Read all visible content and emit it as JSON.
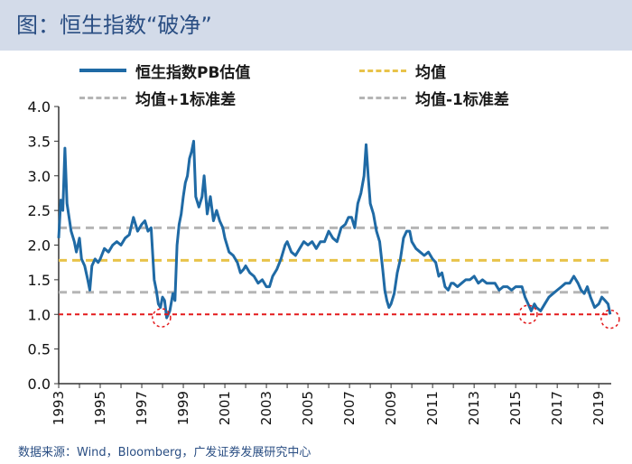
{
  "header": {
    "title": "图：恒生指数“破净”"
  },
  "source": "数据来源：Wind，Bloomberg，广发证券发展研究中心",
  "colors": {
    "header_bg": "#d3dbe9",
    "title": "#2a4e83",
    "series": "#1f6aa5",
    "mean": "#e8c34a",
    "std_band": "#b5b5b5",
    "one_line": "#e31a1c",
    "circle": "#e31a1c"
  },
  "chart_data": {
    "type": "line",
    "title": "图：恒生指数“破净”",
    "xlabel": "",
    "ylabel": "",
    "xlim": [
      1993,
      2019.6
    ],
    "ylim": [
      0.0,
      4.0
    ],
    "y_ticks": [
      "4.0",
      "3.5",
      "3.0",
      "2.5",
      "2.0",
      "1.5",
      "1.0",
      "0.5",
      "0.0"
    ],
    "x_ticks": [
      "1993",
      "1995",
      "1997",
      "1999",
      "2001",
      "2003",
      "2005",
      "2007",
      "2009",
      "2011",
      "2013",
      "2015",
      "2017",
      "2019"
    ],
    "grid": false,
    "legend_position": "top",
    "legend": [
      {
        "label": "恒生指数PB估值",
        "style": "solid"
      },
      {
        "label": "均值",
        "style": "dashed"
      },
      {
        "label": "均值+1标准差",
        "style": "dashed"
      },
      {
        "label": "均值-1标准差",
        "style": "dashed"
      }
    ],
    "series": [
      {
        "name": "恒生指数PB估值",
        "x": [
          1993.0,
          1993.1,
          1993.2,
          1993.3,
          1993.4,
          1993.5,
          1993.6,
          1993.75,
          1993.85,
          1994.0,
          1994.1,
          1994.25,
          1994.4,
          1994.5,
          1994.6,
          1994.75,
          1994.9,
          1995.0,
          1995.2,
          1995.4,
          1995.6,
          1995.8,
          1996.0,
          1996.2,
          1996.4,
          1996.6,
          1996.8,
          1997.0,
          1997.15,
          1997.3,
          1997.45,
          1997.6,
          1997.7,
          1997.8,
          1997.9,
          1998.0,
          1998.1,
          1998.2,
          1998.35,
          1998.5,
          1998.6,
          1998.7,
          1998.8,
          1998.9,
          1999.0,
          1999.1,
          1999.2,
          1999.3,
          1999.4,
          1999.5,
          1999.6,
          1999.75,
          1999.9,
          2000.0,
          2000.15,
          2000.3,
          2000.45,
          2000.6,
          2000.75,
          2000.9,
          2001.0,
          2001.2,
          2001.4,
          2001.6,
          2001.75,
          2001.9,
          2002.0,
          2002.2,
          2002.4,
          2002.6,
          2002.8,
          2003.0,
          2003.15,
          2003.3,
          2003.5,
          2003.7,
          2003.9,
          2004.0,
          2004.2,
          2004.4,
          2004.6,
          2004.8,
          2005.0,
          2005.2,
          2005.4,
          2005.6,
          2005.8,
          2006.0,
          2006.2,
          2006.4,
          2006.6,
          2006.8,
          2006.95,
          2007.1,
          2007.25,
          2007.4,
          2007.55,
          2007.7,
          2007.8,
          2007.9,
          2008.0,
          2008.15,
          2008.3,
          2008.45,
          2008.6,
          2008.7,
          2008.8,
          2008.9,
          2009.0,
          2009.15,
          2009.3,
          2009.45,
          2009.6,
          2009.75,
          2009.9,
          2010.0,
          2010.2,
          2010.4,
          2010.6,
          2010.8,
          2011.0,
          2011.15,
          2011.3,
          2011.45,
          2011.6,
          2011.75,
          2011.9,
          2012.0,
          2012.2,
          2012.4,
          2012.6,
          2012.8,
          2013.0,
          2013.2,
          2013.4,
          2013.6,
          2013.8,
          2014.0,
          2014.2,
          2014.4,
          2014.6,
          2014.8,
          2015.0,
          2015.15,
          2015.3,
          2015.45,
          2015.6,
          2015.75,
          2015.9,
          2016.0,
          2016.2,
          2016.4,
          2016.6,
          2016.8,
          2017.0,
          2017.2,
          2017.4,
          2017.6,
          2017.8,
          2018.0,
          2018.15,
          2018.3,
          2018.45,
          2018.6,
          2018.8,
          2019.0,
          2019.15,
          2019.3,
          2019.45,
          2019.55
        ],
        "y": [
          2.1,
          2.65,
          2.5,
          3.4,
          2.6,
          2.4,
          2.2,
          2.05,
          1.9,
          2.1,
          1.8,
          1.7,
          1.5,
          1.35,
          1.7,
          1.8,
          1.75,
          1.8,
          1.95,
          1.9,
          2.0,
          2.05,
          2.0,
          2.1,
          2.15,
          2.4,
          2.2,
          2.3,
          2.35,
          2.2,
          2.25,
          1.5,
          1.35,
          1.15,
          1.1,
          1.25,
          1.2,
          0.95,
          1.05,
          1.3,
          1.2,
          2.0,
          2.3,
          2.45,
          2.7,
          2.9,
          3.0,
          3.25,
          3.35,
          3.5,
          2.7,
          2.55,
          2.7,
          3.0,
          2.45,
          2.7,
          2.35,
          2.5,
          2.35,
          2.25,
          2.1,
          1.9,
          1.85,
          1.75,
          1.6,
          1.65,
          1.7,
          1.6,
          1.55,
          1.45,
          1.5,
          1.4,
          1.4,
          1.55,
          1.65,
          1.8,
          2.0,
          2.05,
          1.9,
          1.85,
          1.95,
          2.05,
          2.0,
          2.05,
          1.95,
          2.05,
          2.05,
          2.2,
          2.1,
          2.05,
          2.25,
          2.3,
          2.4,
          2.4,
          2.25,
          2.6,
          2.75,
          3.0,
          3.45,
          3.0,
          2.6,
          2.45,
          2.2,
          2.05,
          1.65,
          1.35,
          1.2,
          1.1,
          1.15,
          1.3,
          1.6,
          1.8,
          2.1,
          2.2,
          2.2,
          2.05,
          1.95,
          1.9,
          1.85,
          1.9,
          1.8,
          1.75,
          1.55,
          1.6,
          1.4,
          1.35,
          1.45,
          1.45,
          1.4,
          1.45,
          1.5,
          1.5,
          1.55,
          1.45,
          1.5,
          1.45,
          1.45,
          1.45,
          1.35,
          1.4,
          1.4,
          1.35,
          1.4,
          1.4,
          1.4,
          1.25,
          1.15,
          1.05,
          1.15,
          1.1,
          1.05,
          1.15,
          1.25,
          1.3,
          1.35,
          1.4,
          1.45,
          1.45,
          1.55,
          1.45,
          1.35,
          1.3,
          1.4,
          1.25,
          1.1,
          1.15,
          1.25,
          1.2,
          1.15,
          1.0
        ]
      },
      {
        "name": "均值",
        "value": 1.78
      },
      {
        "name": "均值+1标准差",
        "value": 2.25
      },
      {
        "name": "均值-1标准差",
        "value": 1.32
      }
    ],
    "reference_line": {
      "value": 1.0
    },
    "highlights": [
      {
        "x": 1997.95,
        "y": 0.95
      },
      {
        "x": 2015.6,
        "y": 1.0
      },
      {
        "x": 2019.55,
        "y": 0.93
      }
    ]
  }
}
